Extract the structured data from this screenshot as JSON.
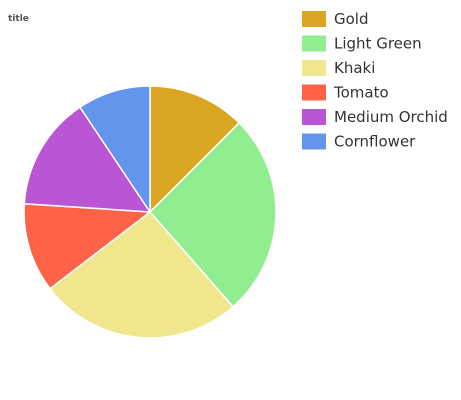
{
  "chart_data": {
    "type": "pie",
    "title": "title",
    "legend_position": "right",
    "slices": [
      {
        "label": "Gold",
        "value": 12,
        "color": "#DAA520"
      },
      {
        "label": "Light Green",
        "value": 25,
        "color": "#90EE90"
      },
      {
        "label": "Khaki",
        "value": 25,
        "color": "#F0E68C"
      },
      {
        "label": "Tomato",
        "value": 11,
        "color": "#FF6347"
      },
      {
        "label": "Medium Orchid",
        "value": 14,
        "color": "#BA55D3"
      },
      {
        "label": "Cornflower",
        "value": 9,
        "color": "#6495ED"
      }
    ]
  }
}
